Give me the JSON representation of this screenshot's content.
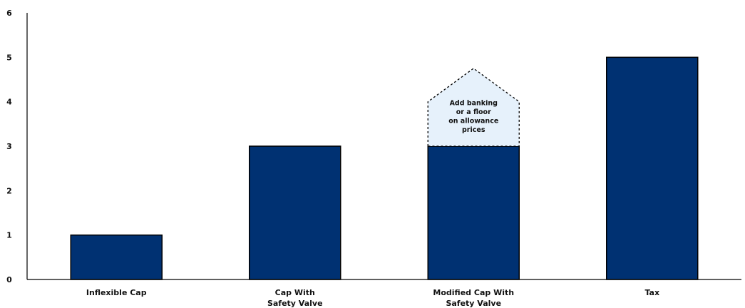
{
  "chart_data": {
    "type": "bar",
    "title": "",
    "xlabel": "",
    "ylabel": "",
    "ylim": [
      0,
      6
    ],
    "yticks": [
      0,
      1,
      2,
      3,
      4,
      5,
      6
    ],
    "grid": false,
    "legend": "none",
    "categories": [
      "Inflexible Cap",
      "Cap With Safety Valve",
      "Modified Cap With Safety Valve",
      "Tax"
    ],
    "category_label_lines": [
      [
        "Inflexible Cap"
      ],
      [
        "Cap With",
        "Safety Valve"
      ],
      [
        "Modified Cap With",
        "Safety Valve"
      ],
      [
        "Tax"
      ]
    ],
    "values": [
      1,
      3,
      3,
      5
    ],
    "annotation": {
      "category": "Modified Cap With Safety Valve",
      "base_value": 3,
      "top_value": 4,
      "peak_value": 4.75,
      "lines": [
        "Add banking",
        "or a floor",
        "on allowance",
        "prices"
      ]
    },
    "colors": {
      "bar": "#003172",
      "bar_stroke": "#000000",
      "annotation_fill": "#e6f1fb",
      "axis": "#000000"
    }
  }
}
